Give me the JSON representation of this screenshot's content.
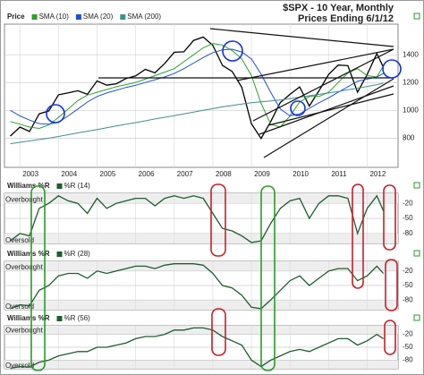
{
  "chart_data": [
    {
      "type": "line",
      "title": "$SPX - 10 Year, Monthly",
      "subtitle": "Prices Ending 6/1/12",
      "ylabel": "Price",
      "x": [
        2002.75,
        2003,
        2003.25,
        2003.5,
        2003.75,
        2004,
        2004.25,
        2004.5,
        2004.75,
        2005,
        2005.25,
        2005.5,
        2005.75,
        2006,
        2006.25,
        2006.5,
        2006.75,
        2007,
        2007.25,
        2007.5,
        2007.75,
        2008,
        2008.25,
        2008.5,
        2008.75,
        2009,
        2009.25,
        2009.5,
        2009.75,
        2010,
        2010.25,
        2010.5,
        2010.75,
        2011,
        2011.25,
        2011.5,
        2011.75,
        2012,
        2012.25,
        2012.42
      ],
      "series": [
        {
          "color": "#000000",
          "values": [
            815,
            880,
            848,
            975,
            996,
            1112,
            1126,
            1141,
            1115,
            1212,
            1181,
            1191,
            1229,
            1248,
            1295,
            1270,
            1336,
            1418,
            1421,
            1503,
            1527,
            1468,
            1323,
            1280,
            1166,
            903,
            798,
            919,
            1057,
            1115,
            1169,
            1031,
            1141,
            1258,
            1326,
            1321,
            1131,
            1258,
            1408,
            1310
          ]
        },
        {
          "name": "SMA (10)",
          "color": "#2ca02c",
          "values": [
            920,
            900,
            880,
            870,
            895,
            950,
            1010,
            1070,
            1110,
            1130,
            1150,
            1170,
            1185,
            1200,
            1225,
            1250,
            1275,
            1300,
            1350,
            1400,
            1450,
            1480,
            1470,
            1430,
            1370,
            1250,
            1050,
            900,
            880,
            960,
            1060,
            1100,
            1100,
            1130,
            1200,
            1270,
            1300,
            1250,
            1240,
            1320
          ]
        },
        {
          "name": "SMA (20)",
          "color": "#1f4fd8",
          "values": [
            1000,
            960,
            930,
            905,
            900,
            915,
            960,
            1010,
            1060,
            1100,
            1125,
            1145,
            1165,
            1180,
            1200,
            1220,
            1240,
            1265,
            1300,
            1340,
            1380,
            1415,
            1435,
            1440,
            1420,
            1370,
            1260,
            1130,
            1010,
            960,
            975,
            1015,
            1055,
            1090,
            1130,
            1170,
            1210,
            1225,
            1240,
            1265
          ]
        },
        {
          "name": "SMA (200)",
          "color": "#3f8f8f",
          "values": [
            760,
            770,
            780,
            790,
            800,
            812,
            825,
            838,
            850,
            862,
            875,
            888,
            900,
            912,
            925,
            938,
            950,
            962,
            975,
            988,
            1000,
            1012,
            1025,
            1035,
            1045,
            1055,
            1062,
            1068,
            1075,
            1085,
            1095,
            1105,
            1115,
            1125,
            1135,
            1148,
            1160,
            1172,
            1185,
            1195
          ]
        }
      ],
      "xlim": [
        2002.6,
        2012.8
      ],
      "xticks": [
        2003,
        2004,
        2005,
        2006,
        2007,
        2008,
        2009,
        2010,
        2011,
        2012
      ],
      "ylim": [
        590,
        1620
      ],
      "yticks": [
        800,
        1000,
        1200,
        1400
      ],
      "grid": true
    },
    {
      "type": "line",
      "title": "Williams %R",
      "overbought_label": "Overbought",
      "oversold_label": "Oversold",
      "x": [
        2002.75,
        2003,
        2003.25,
        2003.5,
        2003.75,
        2004,
        2004.25,
        2004.5,
        2004.75,
        2005,
        2005.25,
        2005.5,
        2005.75,
        2006,
        2006.25,
        2006.5,
        2006.75,
        2007,
        2007.25,
        2007.5,
        2007.75,
        2008,
        2008.25,
        2008.5,
        2008.75,
        2009,
        2009.25,
        2009.5,
        2009.75,
        2010,
        2010.25,
        2010.5,
        2010.75,
        2011,
        2011.25,
        2011.5,
        2011.75,
        2012,
        2012.25,
        2012.42
      ],
      "series": [
        {
          "name": "%R (14)",
          "color": "#1e5c2e",
          "values": [
            -95,
            -80,
            -85,
            -30,
            -20,
            -5,
            -15,
            -20,
            -40,
            -10,
            -30,
            -20,
            -15,
            -10,
            -10,
            -25,
            -10,
            -5,
            -10,
            -5,
            -10,
            -40,
            -70,
            -75,
            -85,
            -98,
            -95,
            -60,
            -30,
            -15,
            -10,
            -50,
            -20,
            -5,
            -5,
            -10,
            -80,
            -30,
            -5,
            -35
          ]
        }
      ],
      "xlim": [
        2002.6,
        2012.8
      ],
      "xticks": [
        2003,
        2004,
        2005,
        2006,
        2007,
        2008,
        2009,
        2010,
        2011,
        2012
      ],
      "ylim": [
        -100,
        0
      ],
      "yticks": [
        -20,
        -50,
        -80
      ],
      "grid": true
    },
    {
      "type": "line",
      "title": "Williams %R",
      "overbought_label": "Overbought",
      "oversold_label": "Oversold",
      "x": [
        2002.75,
        2003,
        2003.25,
        2003.5,
        2003.75,
        2004,
        2004.25,
        2004.5,
        2004.75,
        2005,
        2005.25,
        2005.5,
        2005.75,
        2006,
        2006.25,
        2006.5,
        2006.75,
        2007,
        2007.25,
        2007.5,
        2007.75,
        2008,
        2008.25,
        2008.5,
        2008.75,
        2009,
        2009.25,
        2009.5,
        2009.75,
        2010,
        2010.25,
        2010.5,
        2010.75,
        2011,
        2011.25,
        2011.5,
        2011.75,
        2012,
        2012.25,
        2012.42
      ],
      "series": [
        {
          "name": "%R (28)",
          "color": "#1e5c2e",
          "values": [
            -98,
            -90,
            -92,
            -60,
            -50,
            -30,
            -25,
            -25,
            -35,
            -20,
            -25,
            -20,
            -15,
            -10,
            -10,
            -15,
            -8,
            -5,
            -5,
            -5,
            -8,
            -25,
            -50,
            -55,
            -70,
            -95,
            -98,
            -80,
            -60,
            -40,
            -30,
            -50,
            -35,
            -20,
            -15,
            -15,
            -40,
            -30,
            -10,
            -25
          ]
        }
      ],
      "xlim": [
        2002.6,
        2012.8
      ],
      "xticks": [
        2003,
        2004,
        2005,
        2006,
        2007,
        2008,
        2009,
        2010,
        2011,
        2012
      ],
      "ylim": [
        -100,
        0
      ],
      "yticks": [
        -20,
        -50,
        -80
      ],
      "grid": true
    },
    {
      "type": "line",
      "title": "Williams %R",
      "overbought_label": "Overbought",
      "oversold_label": "Oversold",
      "x": [
        2002.75,
        2003,
        2003.25,
        2003.5,
        2003.75,
        2004,
        2004.25,
        2004.5,
        2004.75,
        2005,
        2005.25,
        2005.5,
        2005.75,
        2006,
        2006.25,
        2006.5,
        2006.75,
        2007,
        2007.25,
        2007.5,
        2007.75,
        2008,
        2008.25,
        2008.5,
        2008.75,
        2009,
        2009.25,
        2009.5,
        2009.75,
        2010,
        2010.25,
        2010.5,
        2010.75,
        2011,
        2011.25,
        2011.5,
        2011.75,
        2012,
        2012.25,
        2012.42
      ],
      "series": [
        {
          "name": "%R (56)",
          "color": "#1e5c2e",
          "values": [
            -99,
            -95,
            -96,
            -85,
            -80,
            -70,
            -65,
            -60,
            -60,
            -50,
            -50,
            -45,
            -40,
            -30,
            -25,
            -25,
            -20,
            -10,
            -10,
            -5,
            -5,
            -10,
            -25,
            -35,
            -45,
            -80,
            -95,
            -80,
            -70,
            -60,
            -55,
            -60,
            -50,
            -40,
            -30,
            -30,
            -45,
            -35,
            -20,
            -30
          ]
        }
      ],
      "xlim": [
        2002.6,
        2012.8
      ],
      "xticks": [
        2003,
        2004,
        2005,
        2006,
        2007,
        2008,
        2009,
        2010,
        2011,
        2012
      ],
      "ylim": [
        -100,
        0
      ],
      "yticks": [
        -20,
        -50,
        -80
      ],
      "grid": true
    }
  ]
}
